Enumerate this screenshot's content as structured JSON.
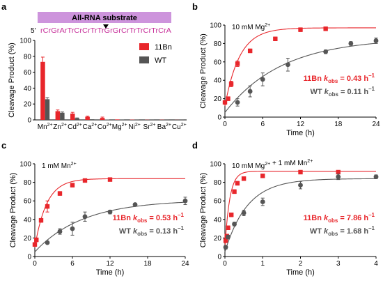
{
  "colors": {
    "red": "#e8262b",
    "gray": "#555555",
    "magenta": "#c7309a",
    "bar_fill": "#cd94dc"
  },
  "chart_data": [
    {
      "panel": "a",
      "type": "bar",
      "header": {
        "banner": "All-RNA substrate",
        "prime": "5'",
        "sequence": "rCrGrArTrCrCrTrTrGrGrCrTrTrCrTrCrA"
      },
      "categories": [
        "Mn2+",
        "Zn2+",
        "Cd2+",
        "Ca2+",
        "Co2+",
        "Mg2+",
        "Ni2+",
        "Sr2+",
        "Ba2+",
        "Cu2+"
      ],
      "series": [
        {
          "name": "11Bn",
          "color": "#e8262b",
          "values": [
            73,
            11,
            8,
            4,
            2.5,
            0.6,
            0.3,
            0.2,
            0.2,
            0.1
          ],
          "errors": [
            6,
            1.5,
            1.5,
            0.8,
            1,
            0.2,
            0.1,
            0.1,
            0.1,
            0.1
          ]
        },
        {
          "name": "WT",
          "color": "#555555",
          "values": [
            26,
            9,
            2,
            0.8,
            0.4,
            0.2,
            0.2,
            0.1,
            0.1,
            0.1
          ],
          "errors": [
            2,
            1,
            0.5,
            0.2,
            0.1,
            0.1,
            0.1,
            0.1,
            0.1,
            0.1
          ]
        }
      ],
      "ylabel": "Cleavage Product (%)",
      "ylim": [
        0,
        100
      ],
      "yticks": [
        "0",
        "20",
        "40",
        "60",
        "80",
        "100"
      ]
    },
    {
      "panel": "b",
      "type": "scatter",
      "condition": "10 mM Mg2+",
      "xlabel": "Time (h)",
      "ylabel": "Cleavage Product (%)",
      "xlim": [
        0,
        24
      ],
      "ylim": [
        0,
        100
      ],
      "xticks": [
        "0",
        "6",
        "12",
        "18",
        "24"
      ],
      "yticks": [
        "0",
        "20",
        "40",
        "60",
        "80",
        "100"
      ],
      "series": [
        {
          "name": "11Bn",
          "color": "#e8262b",
          "marker": "square",
          "points": [
            [
              0,
              16
            ],
            [
              0.5,
              20
            ],
            [
              1,
              36
            ],
            [
              2,
              58
            ],
            [
              4,
              72
            ],
            [
              8,
              85
            ],
            [
              12,
              95
            ],
            [
              16,
              96
            ]
          ],
          "errors": [
            2,
            2,
            3,
            3,
            2,
            2,
            2,
            2
          ],
          "fit": {
            "k": 0.43,
            "plateau": 97,
            "y0": 12
          },
          "annotation": {
            "label": "11Bn",
            "k_text": "k",
            "sub": "obs",
            "value": "= 0.43 h",
            "exp": "–1"
          }
        },
        {
          "name": "WT",
          "color": "#555555",
          "marker": "circle",
          "points": [
            [
              2,
              16
            ],
            [
              4,
              28
            ],
            [
              6,
              41
            ],
            [
              10,
              57
            ],
            [
              16,
              71
            ],
            [
              20,
              80
            ],
            [
              24,
              83
            ]
          ],
          "errors": [
            4,
            6,
            7,
            7,
            2,
            2,
            3
          ],
          "fit": {
            "k": 0.11,
            "plateau": 86,
            "y0": 5
          },
          "annotation": {
            "label": "WT",
            "k_text": "k",
            "sub": "obs",
            "value": "= 0.11 h",
            "exp": "–1"
          }
        }
      ]
    },
    {
      "panel": "c",
      "type": "scatter",
      "condition": "1 mM Mn2+",
      "xlabel": "Time (h)",
      "ylabel": "Cleavage Product (%)",
      "xlim": [
        0,
        24
      ],
      "ylim": [
        0,
        100
      ],
      "xticks": [
        "0",
        "6",
        "12",
        "18",
        "24"
      ],
      "yticks": [
        "0",
        "20",
        "40",
        "60",
        "80",
        "100"
      ],
      "series": [
        {
          "name": "11Bn",
          "color": "#e8262b",
          "marker": "square",
          "points": [
            [
              0,
              13
            ],
            [
              0.25,
              18
            ],
            [
              1,
              39
            ],
            [
              2,
              54
            ],
            [
              4,
              68
            ],
            [
              6,
              77
            ],
            [
              8,
              82
            ],
            [
              12,
              83
            ]
          ],
          "errors": [
            2,
            2,
            2,
            6,
            2,
            2,
            1,
            1
          ],
          "fit": {
            "k": 0.53,
            "plateau": 84,
            "y0": 10
          },
          "annotation": {
            "label": "11Bn",
            "k_text": "k",
            "sub": "obs",
            "value": "= 0.53 h",
            "exp": "–1"
          }
        },
        {
          "name": "WT",
          "color": "#555555",
          "marker": "circle",
          "points": [
            [
              2,
              15
            ],
            [
              4,
              27
            ],
            [
              6,
              30
            ],
            [
              8,
              43
            ],
            [
              12,
              48
            ],
            [
              16,
              56
            ],
            [
              24,
              60
            ]
          ],
          "errors": [
            1,
            3,
            7,
            5,
            2,
            1,
            4
          ],
          "fit": {
            "k": 0.13,
            "plateau": 61,
            "y0": 5
          },
          "annotation": {
            "label": "WT",
            "k_text": "k",
            "sub": "obs",
            "value": "= 0.13 h",
            "exp": "–1"
          }
        }
      ]
    },
    {
      "panel": "d",
      "type": "scatter",
      "condition": "10 mM Mg2+ + 1 mM Mn2+",
      "xlabel": "Time (h)",
      "ylabel": "Cleavage Product (%)",
      "xlim": [
        0,
        4
      ],
      "ylim": [
        0,
        100
      ],
      "xticks": [
        "0",
        "1",
        "2",
        "3",
        "4"
      ],
      "yticks": [
        "0",
        "20",
        "40",
        "60",
        "80",
        "100"
      ],
      "series": [
        {
          "name": "11Bn",
          "color": "#e8262b",
          "marker": "square",
          "points": [
            [
              0.02,
              17
            ],
            [
              0.05,
              22
            ],
            [
              0.083,
              31
            ],
            [
              0.17,
              45
            ],
            [
              0.25,
              70
            ],
            [
              0.33,
              79
            ],
            [
              0.5,
              84
            ],
            [
              1,
              87
            ],
            [
              2,
              91
            ],
            [
              3,
              91
            ]
          ],
          "errors": [
            2,
            2,
            2,
            2,
            2,
            2,
            2,
            1,
            1,
            1
          ],
          "fit": {
            "k": 7.86,
            "plateau": 92,
            "y0": 10
          },
          "annotation": {
            "label": "11Bn",
            "k_text": "k",
            "sub": "obs",
            "value": "= 7.86 h",
            "exp": "–1"
          }
        },
        {
          "name": "WT",
          "color": "#555555",
          "marker": "circle",
          "points": [
            [
              0.02,
              10
            ],
            [
              0.083,
              21
            ],
            [
              0.25,
              35
            ],
            [
              0.5,
              47
            ],
            [
              1,
              59
            ],
            [
              2,
              77
            ],
            [
              3,
              86
            ],
            [
              4,
              86
            ]
          ],
          "errors": [
            2,
            2,
            2,
            3,
            4,
            4,
            3,
            2
          ],
          "fit": {
            "k": 1.68,
            "plateau": 84,
            "y0": 5
          },
          "annotation": {
            "label": "WT",
            "k_text": "k",
            "sub": "obs",
            "value": "= 1.68 h",
            "exp": "–1"
          }
        }
      ]
    }
  ]
}
